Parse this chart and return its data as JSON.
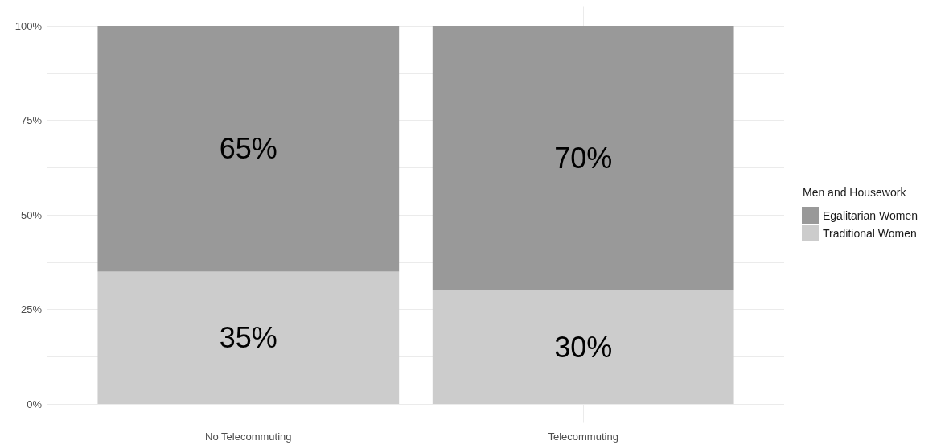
{
  "chart_data": {
    "type": "bar",
    "stacked": true,
    "categories": [
      "No Telecommuting",
      "Telecommuting"
    ],
    "series": [
      {
        "name": "Traditional Women",
        "color": "#cccccc",
        "values": [
          35,
          30
        ],
        "value_labels": [
          "35%",
          "30%"
        ]
      },
      {
        "name": "Egalitarian Women",
        "color": "#999999",
        "values": [
          65,
          70
        ],
        "value_labels": [
          "65%",
          "70%"
        ]
      }
    ],
    "legend_title": "Men and Housework",
    "legend": "right",
    "grid": true,
    "ylim": [
      -5,
      105
    ],
    "yticks": [
      {
        "value": 0,
        "label": "0%"
      },
      {
        "value": 12.5,
        "label": null
      },
      {
        "value": 25,
        "label": "25%"
      },
      {
        "value": 37.5,
        "label": null
      },
      {
        "value": 50,
        "label": "50%"
      },
      {
        "value": 62.5,
        "label": null
      },
      {
        "value": 75,
        "label": "75%"
      },
      {
        "value": 87.5,
        "label": null
      },
      {
        "value": 100,
        "label": "100%"
      }
    ]
  }
}
